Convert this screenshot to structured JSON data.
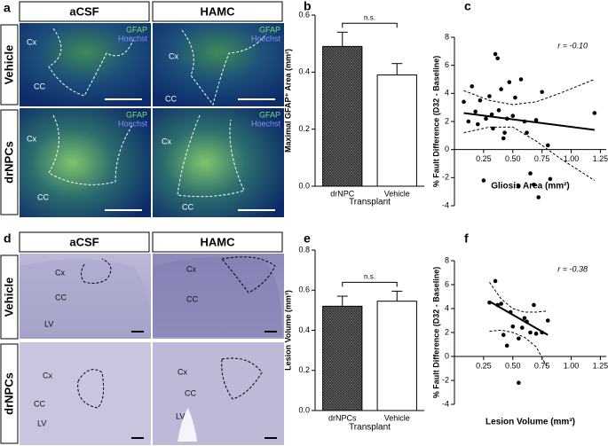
{
  "panel_a": {
    "letter": "a",
    "columns": [
      "aCSF",
      "HAMC"
    ],
    "rows": [
      "Vehicle",
      "drNPCs"
    ],
    "stains": [
      "GFAP",
      "Hoechst"
    ],
    "regions": [
      "Cx",
      "CC"
    ]
  },
  "panel_d": {
    "letter": "d",
    "columns": [
      "aCSF",
      "HAMC"
    ],
    "rows": [
      "Vehicle",
      "drNPCs"
    ],
    "regions": [
      "Cx",
      "CC",
      "LV"
    ]
  },
  "chart_data": [
    {
      "type": "bar",
      "panel_label": "b",
      "categories": [
        "drNPC",
        "Vehicle"
      ],
      "values": [
        0.49,
        0.39
      ],
      "errors": [
        0.05,
        0.04
      ],
      "colors": [
        "#6e6e6e",
        "#ffffff"
      ],
      "hatch": [
        true,
        false
      ],
      "ylim": [
        0,
        0.6
      ],
      "yticks": [
        {
          "value": 0,
          "label": "0.0"
        },
        0.2,
        0.4,
        0.6
      ],
      "ylabel": "Maximal GFAP⁺ Area (mm²)",
      "xlabel": "Transplant",
      "annotation": "n.s."
    },
    {
      "type": "scatter",
      "panel_label": "c",
      "color": "#000000",
      "x": [
        0.08,
        0.12,
        0.15,
        0.18,
        0.2,
        0.22,
        0.25,
        0.27,
        0.3,
        0.32,
        0.33,
        0.35,
        0.37,
        0.38,
        0.4,
        0.42,
        0.43,
        0.45,
        0.47,
        0.5,
        0.52,
        0.55,
        0.57,
        0.6,
        0.62,
        0.65,
        0.68,
        0.7,
        0.72,
        0.75,
        0.8,
        0.82,
        1.2
      ],
      "values": [
        3.4,
        2.0,
        4.5,
        2.7,
        1.8,
        3.5,
        -2.2,
        2.2,
        3.8,
        2.5,
        1.5,
        6.8,
        6.5,
        2.8,
        4.3,
        0.8,
        1.2,
        2.2,
        4.8,
        2.4,
        3.7,
        -2.6,
        5.0,
        2.0,
        1.2,
        -1.7,
        -2.5,
        2.1,
        -3.4,
        4.1,
        0.3,
        -2.1,
        2.6
      ],
      "fit": {
        "x": [
          0.08,
          1.2
        ],
        "values": [
          2.6,
          1.4
        ]
      },
      "ci_upper": {
        "x": [
          0.08,
          0.3,
          0.5,
          0.7,
          0.9,
          1.2
        ],
        "values": [
          4.2,
          3.5,
          3.2,
          3.4,
          4.0,
          5.0
        ]
      },
      "ci_lower": {
        "x": [
          0.08,
          0.3,
          0.5,
          0.7,
          0.9,
          1.2
        ],
        "values": [
          1.2,
          1.6,
          1.6,
          0.6,
          -0.6,
          -2.2
        ]
      },
      "xlim": [
        0,
        1.3
      ],
      "xticks": [
        0.25,
        {
          "value": 0.5,
          "label": "0.50"
        },
        0.75,
        {
          "value": 1.0,
          "label": "1.00"
        },
        1.25
      ],
      "ylim": [
        -4,
        8
      ],
      "yticks": [
        -4,
        -2,
        0,
        2,
        4,
        6,
        8
      ],
      "ylabel": "% Fault Difference (D32 - Baseline)",
      "xlabel": "Gliosis Area (mm²)",
      "annotation": "r = -0.10"
    },
    {
      "type": "bar",
      "panel_label": "e",
      "categories": [
        "drNPCs",
        "Vehicle"
      ],
      "values": [
        0.52,
        0.545
      ],
      "errors": [
        0.05,
        0.05
      ],
      "colors": [
        "#6e6e6e",
        "#ffffff"
      ],
      "hatch": [
        true,
        false
      ],
      "ylim": [
        0,
        0.8
      ],
      "yticks": [
        {
          "value": 0,
          "label": "0.0"
        },
        0.2,
        0.4,
        0.6,
        0.8
      ],
      "ylabel": "Lesion Volume (mm³)",
      "xlabel": "Transplant",
      "annotation": "n.s."
    },
    {
      "type": "scatter",
      "panel_label": "f",
      "color": "#000000",
      "x": [
        0.3,
        0.35,
        0.37,
        0.4,
        0.42,
        0.45,
        0.48,
        0.5,
        0.55,
        0.58,
        0.6,
        0.62,
        0.65,
        0.68,
        0.7,
        0.75,
        0.8,
        0.55
      ],
      "values": [
        4.5,
        6.3,
        4.3,
        4.4,
        1.8,
        0.9,
        3.7,
        2.5,
        1.5,
        2.4,
        3.2,
        2.9,
        2.0,
        4.3,
        1.9,
        2.0,
        3.0,
        -2.2
      ],
      "fit": {
        "x": [
          0.3,
          0.8
        ],
        "values": [
          4.6,
          1.8
        ]
      },
      "ci_upper": {
        "x": [
          0.3,
          0.4,
          0.5,
          0.6,
          0.7,
          0.8
        ],
        "values": [
          6.2,
          4.8,
          4.0,
          3.7,
          3.7,
          3.8
        ]
      },
      "ci_lower": {
        "x": [
          0.3,
          0.4,
          0.5,
          0.6,
          0.7,
          0.8
        ],
        "values": [
          2.1,
          2.2,
          2.0,
          1.6,
          0.8,
          -1.0
        ]
      },
      "xlim": [
        0,
        1.3
      ],
      "xticks": [
        0.25,
        {
          "value": 0.5,
          "label": "0.50"
        },
        0.75,
        {
          "value": 1.0,
          "label": "1.00"
        },
        1.25
      ],
      "ylim": [
        -4,
        8
      ],
      "yticks": [
        -4,
        -2,
        0,
        2,
        4,
        6,
        8
      ],
      "ylabel": "% Fault Difference (D32 - Baseline)",
      "xlabel": "Lesion Volume (mm³)",
      "annotation": "r = -0.38"
    }
  ]
}
